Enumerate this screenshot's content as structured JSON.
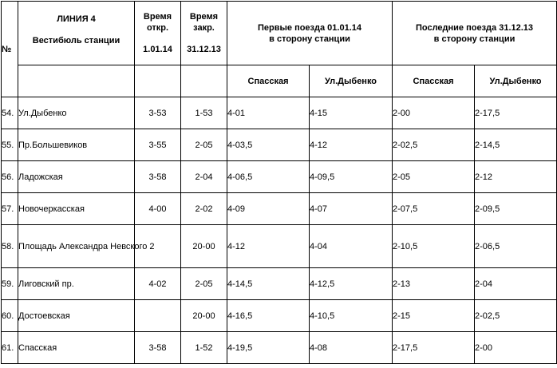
{
  "header": {
    "num": "№",
    "line_title": "ЛИНИЯ 4",
    "line_subtitle": "Вестибюль станции",
    "open_label_1": "Время",
    "open_label_2": "откр.",
    "open_date": "1.01.14",
    "close_label_1": "Время",
    "close_label_2": "закр.",
    "close_date": "31.12.13",
    "first_line1": "Первые поезда 01.01.14",
    "first_line2": "в сторону станции",
    "last_line1": "Последние поезда 31.12.13",
    "last_line2": "в сторону станции",
    "dir_a": "Спасская",
    "dir_b": "Ул.Дыбенко"
  },
  "rows": [
    {
      "num": "54.",
      "name": "Ул.Дыбенко",
      "open": "3-53",
      "close": "1-53",
      "first_a": "4-01",
      "first_b": "4-15",
      "last_a": "2-00",
      "last_b": "2-17,5"
    },
    {
      "num": "55.",
      "name": "Пр.Большевиков",
      "open": "3-55",
      "close": "2-05",
      "first_a": "4-03,5",
      "first_b": "4-12",
      "last_a": "2-02,5",
      "last_b": "2-14,5"
    },
    {
      "num": "56.",
      "name": "Ладожская",
      "open": "3-58",
      "close": "2-04",
      "first_a": "4-06,5",
      "first_b": "4-09,5",
      "last_a": "2-05",
      "last_b": "2-12"
    },
    {
      "num": "57.",
      "name": "Новочеркасская",
      "open": "4-00",
      "close": "2-02",
      "first_a": "4-09",
      "first_b": "4-07",
      "last_a": "2-07,5",
      "last_b": "2-09,5"
    },
    {
      "num": "58.",
      "name": "Площадь Александра Невского 2",
      "open": "",
      "close": "20-00",
      "first_a": "4-12",
      "first_b": "4-04",
      "last_a": "2-10,5",
      "last_b": "2-06,5"
    },
    {
      "num": "59.",
      "name": "Лиговский пр.",
      "open": "4-02",
      "close": "2-05",
      "first_a": "4-14,5",
      "first_b": "4-12,5",
      "last_a": "2-13",
      "last_b": "2-04"
    },
    {
      "num": "60.",
      "name": "Достоевская",
      "open": "",
      "close": "20-00",
      "first_a": "4-16,5",
      "first_b": "4-10,5",
      "last_a": "2-15",
      "last_b": "2-02,5"
    },
    {
      "num": "61.",
      "name": "Спасская",
      "open": "3-58",
      "close": "1-52",
      "first_a": "4-19,5",
      "first_b": "4-08",
      "last_a": "2-17,5",
      "last_b": "2-00"
    }
  ]
}
